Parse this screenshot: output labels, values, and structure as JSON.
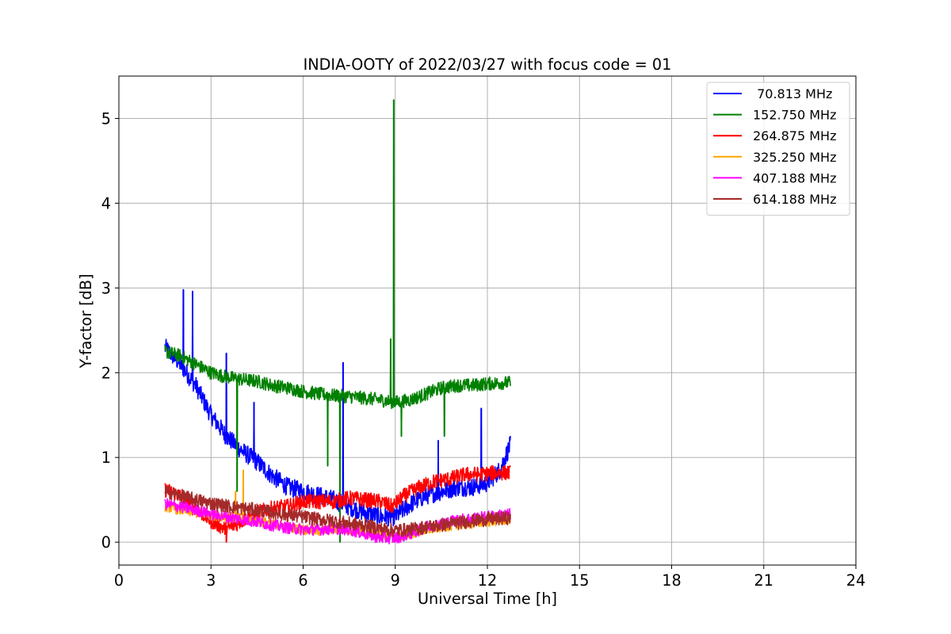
{
  "chart_data": {
    "type": "line",
    "title": "INDIA-OOTY of 2022/03/27 with focus code = 01",
    "xlabel": "Universal Time [h]",
    "ylabel": "Y-factor [dB]",
    "xlim": [
      0,
      24
    ],
    "ylim": [
      -0.27,
      5.5
    ],
    "xticks": [
      0,
      3,
      6,
      9,
      12,
      15,
      18,
      21,
      24
    ],
    "yticks": [
      0,
      1,
      2,
      3,
      4,
      5
    ],
    "grid": true,
    "legend_position": "top-right",
    "series": [
      {
        "name": " 70.813 MHz",
        "color": "#0000ff",
        "x": [
          1.5,
          2.0,
          2.5,
          3.0,
          3.5,
          4.0,
          4.5,
          5.0,
          5.5,
          6.0,
          6.5,
          7.0,
          7.5,
          8.0,
          8.5,
          9.0,
          9.5,
          10.0,
          10.5,
          11.0,
          11.5,
          12.0,
          12.4,
          12.75
        ],
        "y": [
          2.3,
          2.1,
          1.85,
          1.5,
          1.25,
          1.08,
          0.95,
          0.78,
          0.65,
          0.6,
          0.55,
          0.5,
          0.42,
          0.35,
          0.3,
          0.3,
          0.45,
          0.55,
          0.6,
          0.65,
          0.65,
          0.7,
          0.85,
          1.15
        ],
        "spikes": [
          [
            2.1,
            2.98
          ],
          [
            2.4,
            2.96
          ],
          [
            3.5,
            2.23
          ],
          [
            4.4,
            1.65
          ],
          [
            7.3,
            2.12
          ],
          [
            10.4,
            1.2
          ],
          [
            11.8,
            1.58
          ]
        ]
      },
      {
        "name": "152.750 MHz",
        "color": "#008000",
        "x": [
          1.5,
          2.0,
          2.5,
          3.0,
          3.5,
          4.0,
          4.5,
          5.0,
          5.5,
          6.0,
          6.5,
          7.0,
          7.5,
          8.0,
          8.5,
          9.0,
          9.5,
          10.0,
          10.5,
          11.0,
          11.5,
          12.0,
          12.5,
          12.75
        ],
        "y": [
          2.25,
          2.2,
          2.1,
          2.0,
          1.95,
          1.92,
          1.9,
          1.85,
          1.82,
          1.78,
          1.75,
          1.73,
          1.72,
          1.7,
          1.68,
          1.65,
          1.68,
          1.75,
          1.82,
          1.85,
          1.85,
          1.87,
          1.88,
          1.88
        ],
        "spikes": [
          [
            8.95,
            5.22
          ],
          [
            8.85,
            2.4
          ],
          [
            3.85,
            0.6
          ],
          [
            6.8,
            0.9
          ],
          [
            7.2,
            0.0
          ],
          [
            9.2,
            1.25
          ],
          [
            10.6,
            1.25
          ]
        ]
      },
      {
        "name": "264.875 MHz",
        "color": "#ff0000",
        "x": [
          1.5,
          2.0,
          2.5,
          3.0,
          3.5,
          4.0,
          4.5,
          5.0,
          5.5,
          6.0,
          6.5,
          7.0,
          7.5,
          8.0,
          8.5,
          8.9,
          9.3,
          9.8,
          10.3,
          10.8,
          11.3,
          11.8,
          12.3,
          12.75
        ],
        "y": [
          0.62,
          0.55,
          0.4,
          0.25,
          0.15,
          0.25,
          0.35,
          0.4,
          0.42,
          0.48,
          0.48,
          0.48,
          0.52,
          0.5,
          0.48,
          0.42,
          0.55,
          0.65,
          0.72,
          0.75,
          0.8,
          0.8,
          0.82,
          0.82
        ],
        "spikes": [
          [
            3.5,
            0.0
          ]
        ]
      },
      {
        "name": "325.250 MHz",
        "color": "#ffa500",
        "x": [
          1.5,
          2.0,
          2.5,
          3.0,
          3.5,
          4.0,
          4.5,
          5.0,
          5.5,
          6.0,
          6.5,
          7.0,
          7.5,
          8.0,
          8.5,
          9.0,
          9.5,
          10.0,
          10.5,
          11.0,
          11.5,
          12.0,
          12.5,
          12.75
        ],
        "y": [
          0.42,
          0.38,
          0.35,
          0.32,
          0.3,
          0.28,
          0.25,
          0.22,
          0.18,
          0.15,
          0.13,
          0.15,
          0.15,
          0.12,
          0.08,
          0.06,
          0.1,
          0.14,
          0.18,
          0.2,
          0.22,
          0.24,
          0.26,
          0.27
        ],
        "spikes": [
          [
            4.05,
            0.85
          ],
          [
            3.8,
            0.6
          ]
        ]
      },
      {
        "name": "407.188 MHz",
        "color": "#ff00ff",
        "x": [
          1.5,
          2.0,
          2.5,
          3.0,
          3.5,
          4.0,
          4.5,
          5.0,
          5.5,
          6.0,
          6.5,
          7.0,
          7.5,
          8.0,
          8.5,
          9.0,
          9.5,
          10.0,
          10.5,
          11.0,
          11.5,
          12.0,
          12.5,
          12.75
        ],
        "y": [
          0.45,
          0.42,
          0.38,
          0.33,
          0.3,
          0.27,
          0.24,
          0.2,
          0.17,
          0.15,
          0.15,
          0.16,
          0.15,
          0.1,
          0.05,
          0.05,
          0.1,
          0.18,
          0.22,
          0.26,
          0.28,
          0.3,
          0.32,
          0.33
        ],
        "spikes": []
      },
      {
        "name": "614.188 MHz",
        "color": "#a52a2a",
        "x": [
          1.5,
          2.0,
          2.5,
          3.0,
          3.5,
          4.0,
          4.5,
          5.0,
          5.5,
          6.0,
          6.5,
          7.0,
          7.5,
          8.0,
          8.5,
          9.0,
          9.5,
          10.0,
          10.5,
          11.0,
          11.5,
          12.0,
          12.5,
          12.75
        ],
        "y": [
          0.6,
          0.55,
          0.5,
          0.46,
          0.43,
          0.4,
          0.38,
          0.35,
          0.32,
          0.3,
          0.27,
          0.25,
          0.22,
          0.2,
          0.16,
          0.14,
          0.15,
          0.18,
          0.2,
          0.23,
          0.25,
          0.27,
          0.28,
          0.29
        ],
        "spikes": []
      }
    ]
  }
}
